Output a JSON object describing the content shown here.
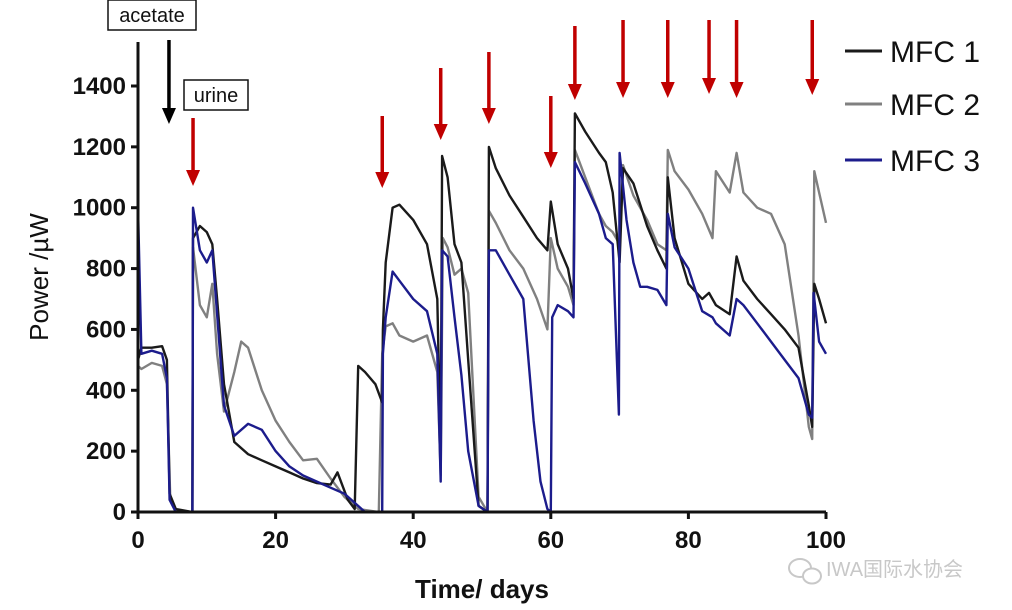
{
  "chart_data": {
    "type": "line",
    "title": "",
    "xlabel": "Time/ days",
    "ylabel": "Power /µW",
    "xlim": [
      0,
      100
    ],
    "ylim": [
      0,
      1500
    ],
    "xticks": [
      0,
      20,
      40,
      60,
      80,
      100
    ],
    "yticks": [
      0,
      200,
      400,
      600,
      800,
      1000,
      1200,
      1400
    ],
    "grid": false,
    "legend_position": "top-right",
    "annotations": {
      "acetate": {
        "label": "acetate",
        "day": 4.5,
        "color": "#000000"
      },
      "urine": {
        "label": "urine",
        "days": [
          8,
          35.5,
          44,
          51,
          60,
          63.5,
          70.5,
          77,
          83,
          87,
          98
        ],
        "color": "#c00000"
      }
    },
    "series": [
      {
        "name": "MFC 1",
        "color": "#1a1a1a",
        "points": [
          [
            0,
            500
          ],
          [
            0.5,
            540
          ],
          [
            2,
            540
          ],
          [
            3.5,
            545
          ],
          [
            4.2,
            500
          ],
          [
            4.6,
            60
          ],
          [
            5.5,
            10
          ],
          [
            7.9,
            0
          ],
          [
            8,
            900
          ],
          [
            9,
            940
          ],
          [
            10,
            920
          ],
          [
            10.8,
            880
          ],
          [
            11.5,
            700
          ],
          [
            12.5,
            420
          ],
          [
            14,
            230
          ],
          [
            16,
            190
          ],
          [
            18,
            170
          ],
          [
            20,
            150
          ],
          [
            22,
            130
          ],
          [
            24,
            110
          ],
          [
            26,
            95
          ],
          [
            28,
            90
          ],
          [
            29,
            130
          ],
          [
            30.5,
            40
          ],
          [
            31.5,
            10
          ],
          [
            32,
            480
          ],
          [
            33,
            460
          ],
          [
            34.5,
            420
          ],
          [
            35.5,
            360
          ],
          [
            35.6,
            600
          ],
          [
            36,
            820
          ],
          [
            37,
            1000
          ],
          [
            38,
            1010
          ],
          [
            40,
            960
          ],
          [
            42,
            880
          ],
          [
            43.5,
            700
          ],
          [
            44,
            180
          ],
          [
            44.2,
            1170
          ],
          [
            45,
            1100
          ],
          [
            46,
            880
          ],
          [
            47,
            820
          ],
          [
            48,
            500
          ],
          [
            49.5,
            20
          ],
          [
            50.8,
            0
          ],
          [
            51,
            1200
          ],
          [
            52,
            1130
          ],
          [
            54,
            1040
          ],
          [
            56,
            970
          ],
          [
            58,
            900
          ],
          [
            59.5,
            860
          ],
          [
            60,
            1020
          ],
          [
            61,
            880
          ],
          [
            62.5,
            800
          ],
          [
            63.3,
            700
          ],
          [
            63.5,
            1310
          ],
          [
            65,
            1250
          ],
          [
            67,
            1180
          ],
          [
            68,
            1150
          ],
          [
            69,
            1050
          ],
          [
            70,
            820
          ],
          [
            70.5,
            1130
          ],
          [
            72,
            1080
          ],
          [
            74,
            940
          ],
          [
            75.5,
            860
          ],
          [
            76.8,
            800
          ],
          [
            77,
            1100
          ],
          [
            78,
            900
          ],
          [
            80,
            750
          ],
          [
            82,
            700
          ],
          [
            83,
            720
          ],
          [
            84,
            680
          ],
          [
            86,
            650
          ],
          [
            87,
            840
          ],
          [
            88,
            760
          ],
          [
            90,
            700
          ],
          [
            92,
            650
          ],
          [
            94,
            600
          ],
          [
            96,
            540
          ],
          [
            97.5,
            350
          ],
          [
            98,
            280
          ],
          [
            98.3,
            750
          ],
          [
            99,
            700
          ],
          [
            100,
            620
          ]
        ]
      },
      {
        "name": "MFC 2",
        "color": "#808080",
        "points": [
          [
            0,
            480
          ],
          [
            0.5,
            470
          ],
          [
            2,
            490
          ],
          [
            3.5,
            480
          ],
          [
            4.2,
            420
          ],
          [
            4.7,
            40
          ],
          [
            5.5,
            5
          ],
          [
            7.9,
            0
          ],
          [
            8,
            870
          ],
          [
            9,
            680
          ],
          [
            10,
            640
          ],
          [
            10.8,
            750
          ],
          [
            11.5,
            520
          ],
          [
            12.5,
            330
          ],
          [
            14,
            460
          ],
          [
            15,
            560
          ],
          [
            16,
            540
          ],
          [
            18,
            400
          ],
          [
            20,
            300
          ],
          [
            22,
            230
          ],
          [
            24,
            170
          ],
          [
            26,
            175
          ],
          [
            28,
            110
          ],
          [
            30,
            50
          ],
          [
            32,
            10
          ],
          [
            35,
            0
          ],
          [
            35.5,
            520
          ],
          [
            36,
            610
          ],
          [
            37,
            620
          ],
          [
            38,
            580
          ],
          [
            40,
            560
          ],
          [
            42,
            580
          ],
          [
            43.5,
            460
          ],
          [
            44,
            120
          ],
          [
            44.3,
            900
          ],
          [
            45,
            870
          ],
          [
            46,
            780
          ],
          [
            47,
            800
          ],
          [
            48,
            720
          ],
          [
            49.5,
            50
          ],
          [
            50.8,
            0
          ],
          [
            51,
            990
          ],
          [
            52,
            950
          ],
          [
            54,
            860
          ],
          [
            56,
            800
          ],
          [
            58,
            700
          ],
          [
            59.5,
            600
          ],
          [
            60,
            900
          ],
          [
            61,
            800
          ],
          [
            62.5,
            740
          ],
          [
            63.3,
            680
          ],
          [
            63.5,
            1190
          ],
          [
            65,
            1100
          ],
          [
            67,
            980
          ],
          [
            68,
            940
          ],
          [
            69,
            920
          ],
          [
            70,
            880
          ],
          [
            70.5,
            1140
          ],
          [
            72,
            1040
          ],
          [
            74,
            960
          ],
          [
            75.5,
            880
          ],
          [
            76.8,
            860
          ],
          [
            77,
            1190
          ],
          [
            78,
            1120
          ],
          [
            80,
            1060
          ],
          [
            82,
            980
          ],
          [
            83.5,
            900
          ],
          [
            84,
            1120
          ],
          [
            86,
            1050
          ],
          [
            87,
            1180
          ],
          [
            88,
            1050
          ],
          [
            90,
            1000
          ],
          [
            92,
            980
          ],
          [
            94,
            880
          ],
          [
            96,
            580
          ],
          [
            97.5,
            280
          ],
          [
            98,
            240
          ],
          [
            98.3,
            1120
          ],
          [
            99,
            1050
          ],
          [
            100,
            950
          ]
        ]
      },
      {
        "name": "MFC 3",
        "color": "#1c1c8c",
        "points": [
          [
            0,
            1000
          ],
          [
            0.5,
            520
          ],
          [
            2,
            530
          ],
          [
            3.5,
            520
          ],
          [
            4.2,
            440
          ],
          [
            4.6,
            40
          ],
          [
            5.5,
            0
          ],
          [
            7.9,
            0
          ],
          [
            8,
            1000
          ],
          [
            9,
            860
          ],
          [
            10,
            820
          ],
          [
            10.8,
            860
          ],
          [
            11.5,
            650
          ],
          [
            12.5,
            350
          ],
          [
            14,
            250
          ],
          [
            16,
            290
          ],
          [
            18,
            270
          ],
          [
            20,
            200
          ],
          [
            22,
            150
          ],
          [
            24,
            120
          ],
          [
            26,
            100
          ],
          [
            28,
            80
          ],
          [
            30,
            60
          ],
          [
            33,
            0
          ],
          [
            35.5,
            0
          ],
          [
            35.6,
            520
          ],
          [
            36,
            640
          ],
          [
            37,
            790
          ],
          [
            38,
            760
          ],
          [
            40,
            700
          ],
          [
            42,
            660
          ],
          [
            43.5,
            520
          ],
          [
            44,
            100
          ],
          [
            44.2,
            860
          ],
          [
            45,
            840
          ],
          [
            46,
            640
          ],
          [
            47,
            450
          ],
          [
            48,
            200
          ],
          [
            49.5,
            20
          ],
          [
            50.8,
            0
          ],
          [
            51,
            860
          ],
          [
            52,
            860
          ],
          [
            54,
            780
          ],
          [
            56,
            700
          ],
          [
            57.5,
            300
          ],
          [
            58.5,
            100
          ],
          [
            59.5,
            10
          ],
          [
            60,
            0
          ],
          [
            60.2,
            640
          ],
          [
            61,
            680
          ],
          [
            62.5,
            660
          ],
          [
            63.3,
            640
          ],
          [
            63.5,
            1150
          ],
          [
            65,
            1080
          ],
          [
            67,
            980
          ],
          [
            68,
            900
          ],
          [
            69,
            880
          ],
          [
            69.9,
            320
          ],
          [
            70,
            1180
          ],
          [
            71,
            960
          ],
          [
            72,
            820
          ],
          [
            73,
            740
          ],
          [
            74,
            740
          ],
          [
            75.5,
            730
          ],
          [
            76.8,
            680
          ],
          [
            77,
            980
          ],
          [
            78,
            870
          ],
          [
            80,
            800
          ],
          [
            82,
            660
          ],
          [
            83.5,
            640
          ],
          [
            84,
            620
          ],
          [
            86,
            580
          ],
          [
            87,
            700
          ],
          [
            88,
            680
          ],
          [
            90,
            620
          ],
          [
            92,
            560
          ],
          [
            94,
            500
          ],
          [
            96,
            440
          ],
          [
            97.5,
            320
          ],
          [
            98,
            310
          ],
          [
            98.2,
            720
          ],
          [
            99,
            560
          ],
          [
            100,
            520
          ]
        ]
      }
    ]
  },
  "watermark": {
    "text": "IWA国际水协会",
    "icon": "wechat-icon"
  }
}
